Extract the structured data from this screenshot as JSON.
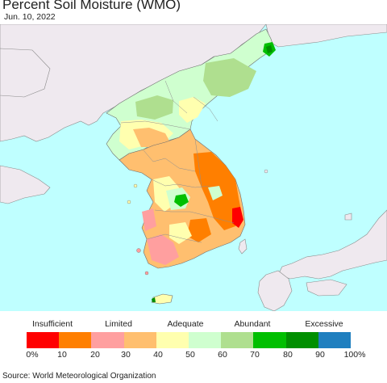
{
  "title": "Percent Soil Moisture (WMO)",
  "date": "Jun. 10, 2022",
  "legend": {
    "categories": [
      "Insufficient",
      "Limited",
      "Adequate",
      "Abundant",
      "Excessive"
    ],
    "colors": [
      "#ff0000",
      "#ff7f00",
      "#ff9f9f",
      "#ffbf6f",
      "#ffffaf",
      "#cfffcf",
      "#afdf8f",
      "#00bf00",
      "#008f00",
      "#1f7fbf"
    ],
    "ticks": [
      "0%",
      "10",
      "20",
      "30",
      "40",
      "50",
      "60",
      "70",
      "80",
      "90",
      "100%"
    ]
  },
  "map": {
    "colors": {
      "sea": "#bfffff",
      "foreign_land": "#efe9ef",
      "border": "#6f6f6f"
    }
  },
  "source": "Source: World Meteorological Organization"
}
